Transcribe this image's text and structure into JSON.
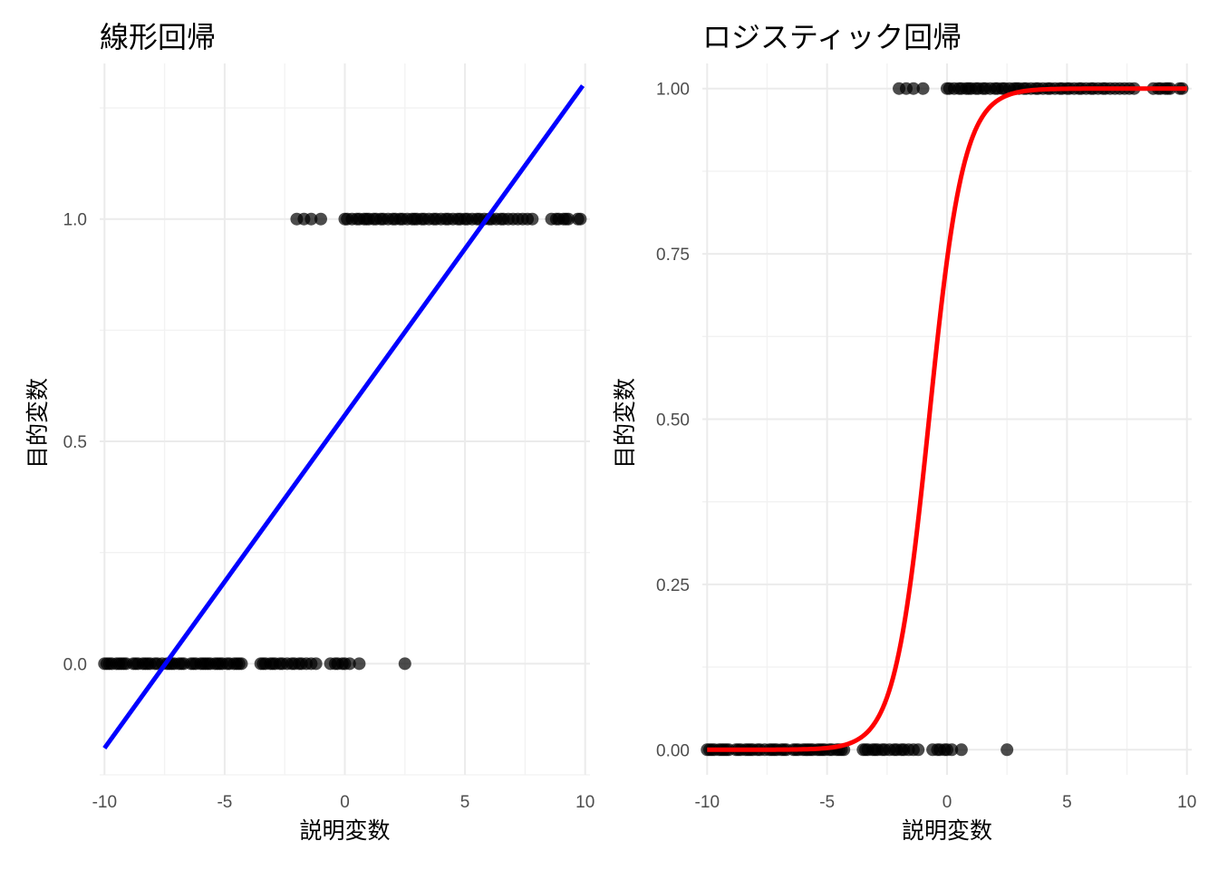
{
  "colors": {
    "points": "#000000",
    "linear_fit": "#0000ff",
    "logistic_fit": "#ff0000",
    "grid": "#ebebeb",
    "tick_text": "#4d4d4d"
  },
  "chart_data": [
    {
      "type": "scatter",
      "title": "線形回帰",
      "xlabel": "説明変数",
      "ylabel": "目的変数",
      "xlim": [
        -10.2,
        10.2
      ],
      "ylim": [
        -0.25,
        1.35
      ],
      "x_ticks": [
        -10,
        -5,
        0,
        5,
        10
      ],
      "x_tick_labels": [
        "-10",
        "-5",
        "0",
        "5",
        "10"
      ],
      "x_minor_ticks": [
        -7.5,
        -2.5,
        2.5,
        7.5
      ],
      "y_ticks": [
        0,
        0.5,
        1
      ],
      "y_tick_labels": [
        "0.0",
        "0.5",
        "1.0"
      ],
      "y_minor_ticks": [
        -0.25,
        0.25,
        0.75,
        1.25
      ],
      "grid": true,
      "points": {
        "y0_x": [
          -10,
          -9.9,
          -9.8,
          -9.7,
          -9.5,
          -9.4,
          -9.3,
          -9.2,
          -9.1,
          -8.8,
          -8.7,
          -8.6,
          -8.4,
          -8.3,
          -8.2,
          -8.1,
          -7.9,
          -7.8,
          -7.6,
          -7.4,
          -7.3,
          -7.2,
          -7.1,
          -6.9,
          -6.8,
          -6.7,
          -6.4,
          -6.3,
          -6.2,
          -6.0,
          -5.9,
          -5.8,
          -5.7,
          -5.6,
          -5.4,
          -5.3,
          -5.2,
          -5.1,
          -4.9,
          -4.8,
          -4.6,
          -4.5,
          -4.4,
          -4.3,
          -3.5,
          -3.4,
          -3.3,
          -3.1,
          -3.0,
          -2.9,
          -2.7,
          -2.6,
          -2.4,
          -2.2,
          -2.1,
          -1.9,
          -1.8,
          -1.6,
          -1.4,
          -1.2,
          -0.6,
          -0.4,
          -0.3,
          -0.1,
          0.0,
          0.2,
          0.6,
          2.5
        ],
        "y1_x": [
          -2.0,
          -1.7,
          -1.4,
          -1.0,
          0.0,
          0.1,
          0.3,
          0.5,
          0.6,
          0.8,
          0.9,
          1.0,
          1.2,
          1.3,
          1.5,
          1.6,
          1.8,
          2.0,
          2.1,
          2.3,
          2.4,
          2.6,
          2.8,
          2.9,
          3.0,
          3.2,
          3.3,
          3.5,
          3.7,
          3.8,
          4.0,
          4.2,
          4.3,
          4.5,
          4.7,
          4.8,
          5.0,
          5.1,
          5.3,
          5.5,
          5.6,
          5.8,
          6.0,
          6.1,
          6.3,
          6.5,
          6.6,
          6.8,
          7.0,
          7.2,
          7.4,
          7.6,
          7.8,
          8.6,
          8.8,
          8.9,
          9.1,
          9.2,
          9.3,
          9.7,
          9.8
        ]
      },
      "fit": {
        "kind": "linear",
        "x": [
          -10,
          9.9
        ],
        "y": [
          -0.19,
          1.3
        ]
      }
    },
    {
      "type": "scatter",
      "title": "ロジスティック回帰",
      "xlabel": "説明変数",
      "ylabel": "目的変数",
      "xlim": [
        -10.2,
        10.2
      ],
      "ylim": [
        -0.038,
        1.038
      ],
      "x_ticks": [
        -10,
        -5,
        0,
        5,
        10
      ],
      "x_tick_labels": [
        "-10",
        "-5",
        "0",
        "5",
        "10"
      ],
      "x_minor_ticks": [
        -7.5,
        -2.5,
        2.5,
        7.5
      ],
      "y_ticks": [
        0,
        0.25,
        0.5,
        0.75,
        1
      ],
      "y_tick_labels": [
        "0.00",
        "0.25",
        "0.50",
        "0.75",
        "1.00"
      ],
      "y_minor_ticks": [
        0.125,
        0.375,
        0.625,
        0.875
      ],
      "grid": true,
      "points": {
        "y0_x": [
          -10,
          -9.9,
          -9.8,
          -9.7,
          -9.5,
          -9.4,
          -9.3,
          -9.2,
          -9.1,
          -8.8,
          -8.7,
          -8.6,
          -8.4,
          -8.3,
          -8.2,
          -8.1,
          -7.9,
          -7.8,
          -7.6,
          -7.4,
          -7.3,
          -7.2,
          -7.1,
          -6.9,
          -6.8,
          -6.7,
          -6.4,
          -6.3,
          -6.2,
          -6.0,
          -5.9,
          -5.8,
          -5.7,
          -5.6,
          -5.4,
          -5.3,
          -5.2,
          -5.1,
          -4.9,
          -4.8,
          -4.6,
          -4.5,
          -4.4,
          -4.3,
          -3.5,
          -3.4,
          -3.3,
          -3.1,
          -3.0,
          -2.9,
          -2.7,
          -2.6,
          -2.4,
          -2.2,
          -2.1,
          -1.9,
          -1.8,
          -1.6,
          -1.4,
          -1.2,
          -0.6,
          -0.4,
          -0.3,
          -0.1,
          0.0,
          0.2,
          0.6,
          2.5
        ],
        "y1_x": [
          -2.0,
          -1.7,
          -1.4,
          -1.0,
          0.0,
          0.1,
          0.3,
          0.5,
          0.6,
          0.8,
          0.9,
          1.0,
          1.2,
          1.3,
          1.5,
          1.6,
          1.8,
          2.0,
          2.1,
          2.3,
          2.4,
          2.6,
          2.8,
          2.9,
          3.0,
          3.2,
          3.3,
          3.5,
          3.7,
          3.8,
          4.0,
          4.2,
          4.3,
          4.5,
          4.7,
          4.8,
          5.0,
          5.1,
          5.3,
          5.5,
          5.6,
          5.8,
          6.0,
          6.1,
          6.3,
          6.5,
          6.6,
          6.8,
          7.0,
          7.2,
          7.4,
          7.6,
          7.8,
          8.6,
          8.8,
          8.9,
          9.1,
          9.2,
          9.3,
          9.7,
          9.8
        ]
      },
      "fit": {
        "kind": "logistic",
        "x_range": [
          -10,
          10
        ],
        "intercept": 1.05,
        "slope": 1.4
      }
    }
  ]
}
